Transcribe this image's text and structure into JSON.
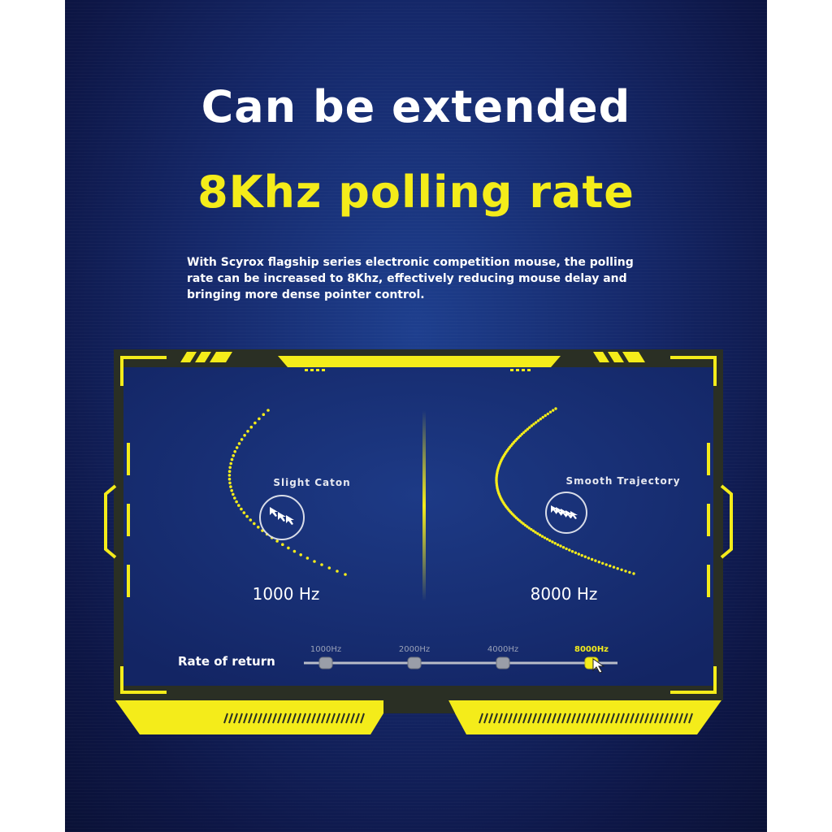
{
  "header": {
    "title_line1": "Can be extended",
    "title_line2": "8Khz polling rate"
  },
  "description": {
    "line1": "With Scyrox flagship series electronic competition mouse, the polling",
    "line2": "rate can be increased to 8Khz, effectively reducing mouse delay and",
    "line3": "bringing more dense pointer control."
  },
  "comparison": {
    "left": {
      "caption": "Slight Caton",
      "frequency": "1000 Hz"
    },
    "right": {
      "caption": "Smooth Trajectory",
      "frequency": "8000 Hz"
    }
  },
  "rate_selector": {
    "label": "Rate of return",
    "options": [
      "1000Hz",
      "2000Hz",
      "4000Hz",
      "8000Hz"
    ],
    "selected": "8000Hz"
  },
  "colors": {
    "accent_yellow": "#f4ec1a",
    "background_blue": "#15286a",
    "frame_dark": "#2a2f24"
  },
  "icons": {
    "cursor": "cursor-arrow-icon"
  }
}
